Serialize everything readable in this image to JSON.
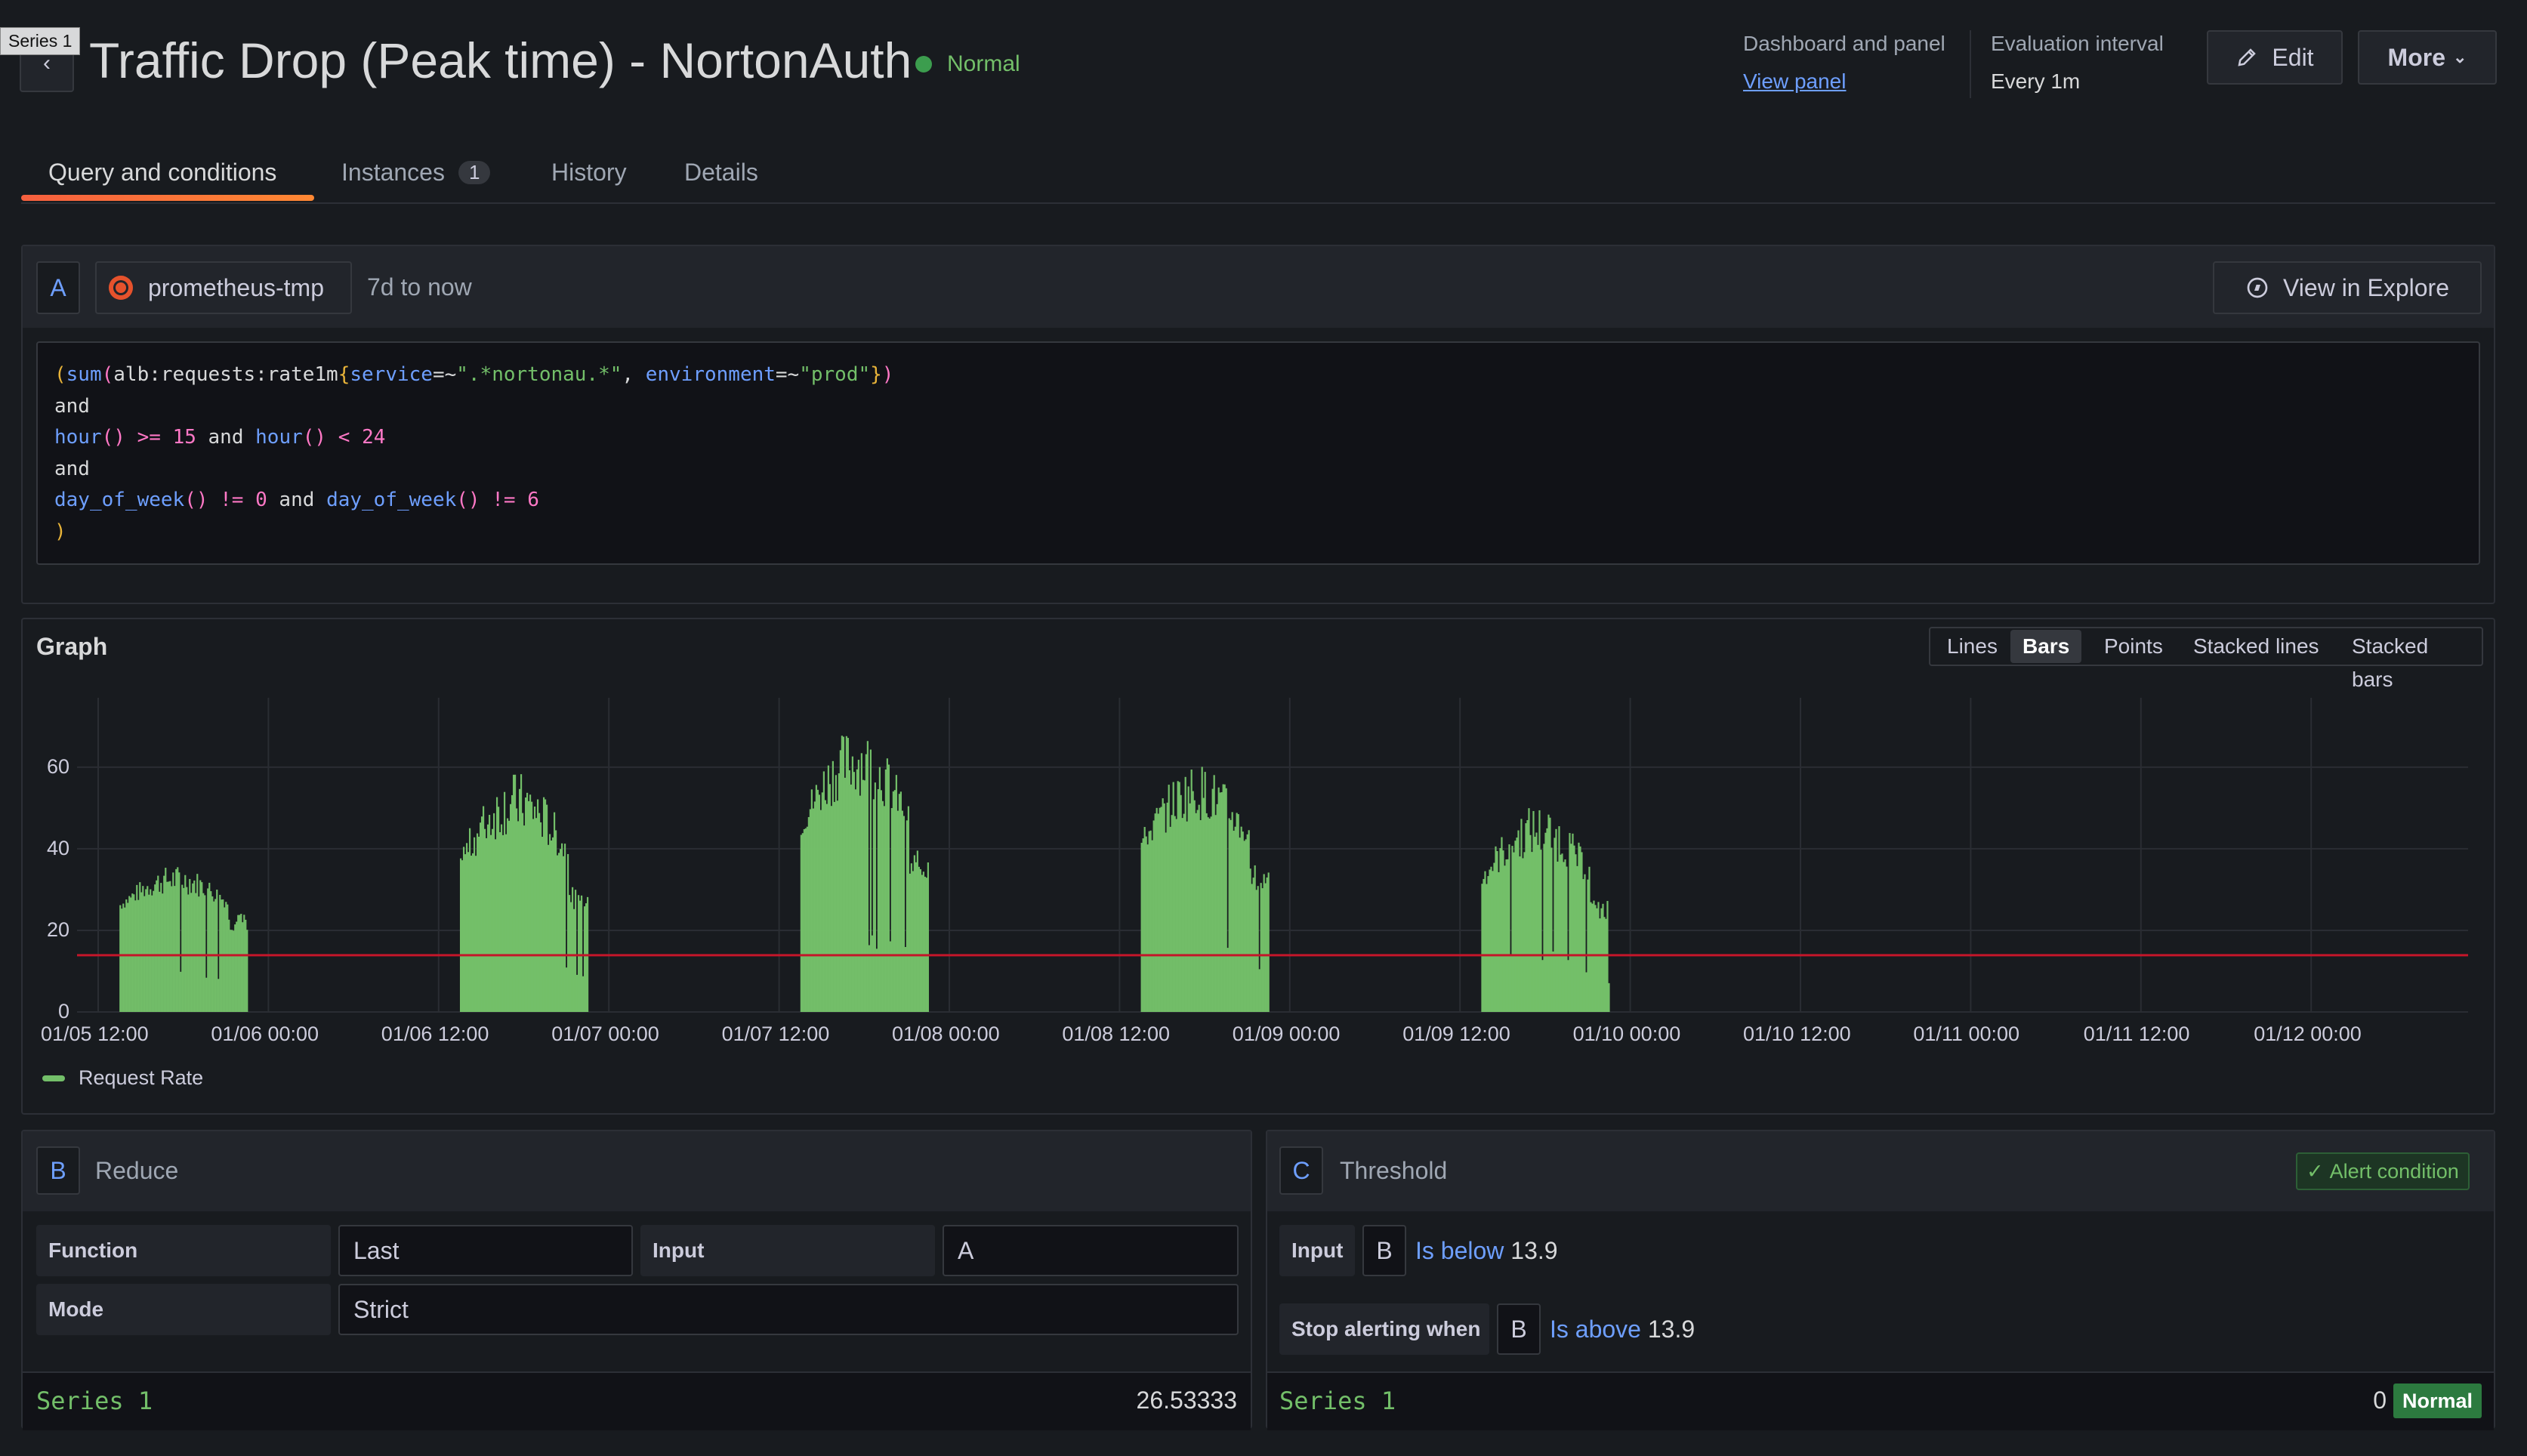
{
  "tooltip": "Series 1",
  "header": {
    "title": "Traffic Drop (Peak time) - NortonAuth",
    "state": "Normal",
    "dashboard_label": "Dashboard and panel",
    "view_panel": "View panel",
    "eval_label": "Evaluation interval",
    "eval_value": "Every 1m",
    "edit": "Edit",
    "more": "More"
  },
  "tabs": [
    {
      "label": "Query and conditions",
      "active": true
    },
    {
      "label": "Instances",
      "count": "1"
    },
    {
      "label": "History"
    },
    {
      "label": "Details"
    }
  ],
  "query": {
    "ref": "A",
    "datasource": "prometheus-tmp",
    "range": "7d to now",
    "explore": "View in Explore"
  },
  "graph": {
    "title": "Graph",
    "view_modes": [
      "Lines",
      "Bars",
      "Points",
      "Stacked lines",
      "Stacked bars"
    ],
    "active_mode": "Bars",
    "legend": "Request Rate"
  },
  "chart_data": {
    "type": "bar",
    "series": [
      {
        "name": "Request Rate",
        "color": "#73bf69"
      }
    ],
    "x_ticks": [
      "01/05 12:00",
      "01/06 00:00",
      "01/06 12:00",
      "01/07 00:00",
      "01/07 12:00",
      "01/08 00:00",
      "01/08 12:00",
      "01/09 00:00",
      "01/09 12:00",
      "01/10 00:00",
      "01/10 12:00",
      "01/11 00:00",
      "01/11 12:00",
      "01/12 00:00"
    ],
    "y_ticks": [
      "0",
      "20",
      "40",
      "60"
    ],
    "ylim": [
      0,
      77
    ],
    "threshold": 13.9,
    "threshold_color": "#c4162a",
    "bursts": [
      {
        "start": "01/05 13:30",
        "end": "01/05 22:30",
        "base": 22,
        "peak": 36
      },
      {
        "start": "01/06 13:30",
        "end": "01/06 22:30",
        "base": 28,
        "peak": 59
      },
      {
        "start": "01/07 13:30",
        "end": "01/07 22:30",
        "base": 36,
        "peak": 70
      },
      {
        "start": "01/08 13:30",
        "end": "01/08 22:30",
        "base": 33,
        "peak": 61
      },
      {
        "start": "01/09 13:30",
        "end": "01/09 22:30",
        "base": 25,
        "peak": 51
      }
    ]
  },
  "reduce": {
    "ref": "B",
    "title": "Reduce",
    "function_label": "Function",
    "function_value": "Last",
    "input_label": "Input",
    "input_value": "A",
    "mode_label": "Mode",
    "mode_value": "Strict",
    "series_name": "Series 1",
    "series_value": "26.53333"
  },
  "threshold": {
    "ref": "C",
    "title": "Threshold",
    "alert_badge": "Alert condition",
    "input_label": "Input",
    "input_ref": "B",
    "condition": "Is below",
    "value": "13.9",
    "stop_label": "Stop alerting when",
    "stop_ref": "B",
    "stop_condition": "Is above",
    "stop_value": "13.9",
    "series_name": "Series 1",
    "series_value": "0",
    "series_state": "Normal"
  }
}
